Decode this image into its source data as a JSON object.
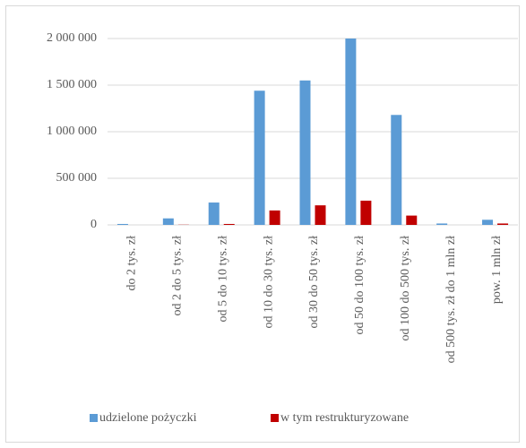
{
  "chart_data": {
    "type": "bar",
    "categories": [
      "do 2 tys. zł",
      "od 2 do 5 tys. zł",
      "od 5 do 10 tys. zł",
      "od 10 do 30 tys. zł",
      "od 30 do 50 tys. zł",
      "od 50 do 100 tys. zł",
      "od 100 do 500 tys. zł",
      "od 500 tys. zł do 1 mln zł",
      "pow. 1 mln zł"
    ],
    "series": [
      {
        "name": "udzielone pożyczki",
        "color": "#5b9bd5",
        "values": [
          10000,
          70000,
          240000,
          1440000,
          1550000,
          2000000,
          1180000,
          15000,
          55000
        ]
      },
      {
        "name": "w tym restrukturyzowane",
        "color": "#c00000",
        "values": [
          0,
          2000,
          10000,
          155000,
          210000,
          260000,
          100000,
          0,
          15000
        ]
      }
    ],
    "ylim": [
      0,
      2000000
    ],
    "yticks": [
      0,
      {
        "value": 500000,
        "label": "500 000"
      },
      {
        "value": 1000000,
        "label": "1 000 000"
      },
      {
        "value": 1500000,
        "label": "1 500 000"
      },
      {
        "value": 2000000,
        "label": "2 000 000"
      }
    ],
    "grid": true,
    "legend": "bottom"
  }
}
